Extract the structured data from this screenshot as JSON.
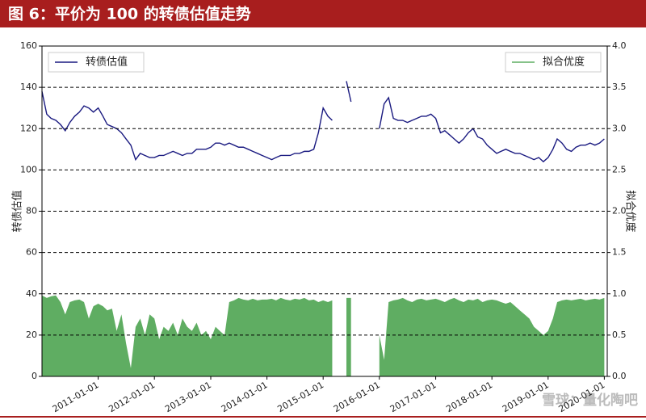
{
  "chart_data": {
    "type": "line",
    "title": "图 6：平价为 100 的转债估值走势",
    "watermark": "雪球：量化陶吧",
    "y_label": "转债估值",
    "y2_label": "拟合优度",
    "x": [
      "2010-01-01",
      "2010-02-01",
      "2010-03-01",
      "2010-04-01",
      "2010-05-01",
      "2010-06-01",
      "2010-07-01",
      "2010-08-01",
      "2010-09-01",
      "2010-10-01",
      "2010-11-01",
      "2010-12-01",
      "2011-01-01",
      "2011-02-01",
      "2011-03-01",
      "2011-04-01",
      "2011-05-01",
      "2011-06-01",
      "2011-07-01",
      "2011-08-01",
      "2011-09-01",
      "2011-10-01",
      "2011-11-01",
      "2011-12-01",
      "2012-01-01",
      "2012-02-01",
      "2012-03-01",
      "2012-04-01",
      "2012-05-01",
      "2012-06-01",
      "2012-07-01",
      "2012-08-01",
      "2012-09-01",
      "2012-10-01",
      "2012-11-01",
      "2012-12-01",
      "2013-01-01",
      "2013-02-01",
      "2013-03-01",
      "2013-04-01",
      "2013-05-01",
      "2013-06-01",
      "2013-07-01",
      "2013-08-01",
      "2013-09-01",
      "2013-10-01",
      "2013-11-01",
      "2013-12-01",
      "2014-01-01",
      "2014-02-01",
      "2014-03-01",
      "2014-04-01",
      "2014-05-01",
      "2014-06-01",
      "2014-07-01",
      "2014-08-01",
      "2014-09-01",
      "2014-10-01",
      "2014-11-01",
      "2014-12-01",
      "2015-01-01",
      "2015-02-01",
      "2015-03-01",
      "2015-04-01",
      "2015-05-01",
      "2015-06-01",
      "2015-07-01",
      "2015-08-01",
      "2015-09-01",
      "2015-10-01",
      "2015-11-01",
      "2015-12-01",
      "2016-01-01",
      "2016-02-01",
      "2016-03-01",
      "2016-04-01",
      "2016-05-01",
      "2016-06-01",
      "2016-07-01",
      "2016-08-01",
      "2016-09-01",
      "2016-10-01",
      "2016-11-01",
      "2016-12-01",
      "2017-01-01",
      "2017-02-01",
      "2017-03-01",
      "2017-04-01",
      "2017-05-01",
      "2017-06-01",
      "2017-07-01",
      "2017-08-01",
      "2017-09-01",
      "2017-10-01",
      "2017-11-01",
      "2017-12-01",
      "2018-01-01",
      "2018-02-01",
      "2018-03-01",
      "2018-04-01",
      "2018-05-01",
      "2018-06-01",
      "2018-07-01",
      "2018-08-01",
      "2018-09-01",
      "2018-10-01",
      "2018-11-01",
      "2018-12-01",
      "2019-01-01",
      "2019-02-01",
      "2019-03-01",
      "2019-04-01",
      "2019-05-01",
      "2019-06-01",
      "2019-07-01",
      "2019-08-01",
      "2019-09-01",
      "2019-10-01",
      "2019-11-01",
      "2019-12-01",
      "2020-01-01"
    ],
    "xlim": [
      "2010-01-01",
      "2020-01-20"
    ],
    "xticks": [
      "2011-01-01",
      "2012-01-01",
      "2013-01-01",
      "2014-01-01",
      "2015-01-01",
      "2016-01-01",
      "2017-01-01",
      "2018-01-01",
      "2019-01-01",
      "2020-01-01"
    ],
    "ylim": [
      0,
      160
    ],
    "yticks": [
      0,
      20,
      40,
      60,
      80,
      100,
      120,
      140,
      160
    ],
    "y2lim": [
      0,
      4
    ],
    "y2ticks": [
      {
        "value": 0,
        "label": "0.0"
      },
      0.5,
      {
        "value": 1,
        "label": "1.0"
      },
      1.5,
      {
        "value": 2,
        "label": "2.0"
      },
      2.5,
      {
        "value": 3,
        "label": "3.0"
      },
      3.5,
      {
        "value": 4,
        "label": "4.0"
      }
    ],
    "grid": true,
    "series": [
      {
        "name": "转债估值",
        "color": "#1a1a80",
        "axis": "y",
        "legend": "upper left",
        "values": [
          138,
          127,
          125,
          124,
          122,
          119,
          123,
          126,
          128,
          131,
          130,
          128,
          130,
          126,
          122,
          121,
          120,
          118,
          115,
          112,
          105,
          108,
          107,
          106,
          106,
          107,
          107,
          108,
          109,
          108,
          107,
          108,
          108,
          110,
          110,
          110,
          111,
          113,
          113,
          112,
          113,
          112,
          111,
          111,
          110,
          109,
          108,
          107,
          106,
          105,
          106,
          107,
          107,
          107,
          108,
          108,
          109,
          109,
          110,
          118,
          130,
          126,
          124,
          null,
          null,
          143,
          133,
          null,
          null,
          null,
          null,
          null,
          120,
          132,
          135,
          125,
          124,
          124,
          123,
          124,
          125,
          126,
          126,
          127,
          125,
          118,
          119,
          117,
          115,
          113,
          115,
          118,
          120,
          116,
          115,
          112,
          110,
          108,
          109,
          110,
          109,
          108,
          108,
          107,
          106,
          105,
          106,
          104,
          106,
          110,
          115,
          113,
          110,
          109,
          111,
          112,
          112,
          113,
          112,
          113,
          115
        ]
      },
      {
        "name": "拟合优度",
        "color": "#5fad62",
        "axis": "y2",
        "legend": "upper right",
        "fill": true,
        "values": [
          0.98,
          0.95,
          0.97,
          0.98,
          0.9,
          0.75,
          0.9,
          0.92,
          0.93,
          0.9,
          0.7,
          0.85,
          0.88,
          0.85,
          0.8,
          0.82,
          0.55,
          0.75,
          0.4,
          0.1,
          0.6,
          0.7,
          0.5,
          0.75,
          0.7,
          0.45,
          0.6,
          0.55,
          0.65,
          0.5,
          0.7,
          0.6,
          0.55,
          0.65,
          0.5,
          0.55,
          0.45,
          0.6,
          0.55,
          0.5,
          0.9,
          0.92,
          0.95,
          0.93,
          0.92,
          0.94,
          0.92,
          0.93,
          0.93,
          0.94,
          0.92,
          0.95,
          0.93,
          0.92,
          0.94,
          0.93,
          0.95,
          0.92,
          0.93,
          0.9,
          0.92,
          0.9,
          0.92,
          null,
          null,
          0.95,
          0.95,
          null,
          null,
          null,
          null,
          null,
          0.5,
          0.2,
          0.9,
          0.92,
          0.93,
          0.95,
          0.92,
          0.9,
          0.93,
          0.94,
          0.92,
          0.93,
          0.94,
          0.92,
          0.9,
          0.93,
          0.95,
          0.92,
          0.9,
          0.93,
          0.92,
          0.94,
          0.9,
          0.92,
          0.93,
          0.92,
          0.9,
          0.88,
          0.9,
          0.85,
          0.8,
          0.75,
          0.7,
          0.6,
          0.55,
          0.5,
          0.55,
          0.7,
          0.9,
          0.92,
          0.93,
          0.92,
          0.93,
          0.94,
          0.92,
          0.93,
          0.94,
          0.93,
          0.95
        ]
      }
    ]
  }
}
